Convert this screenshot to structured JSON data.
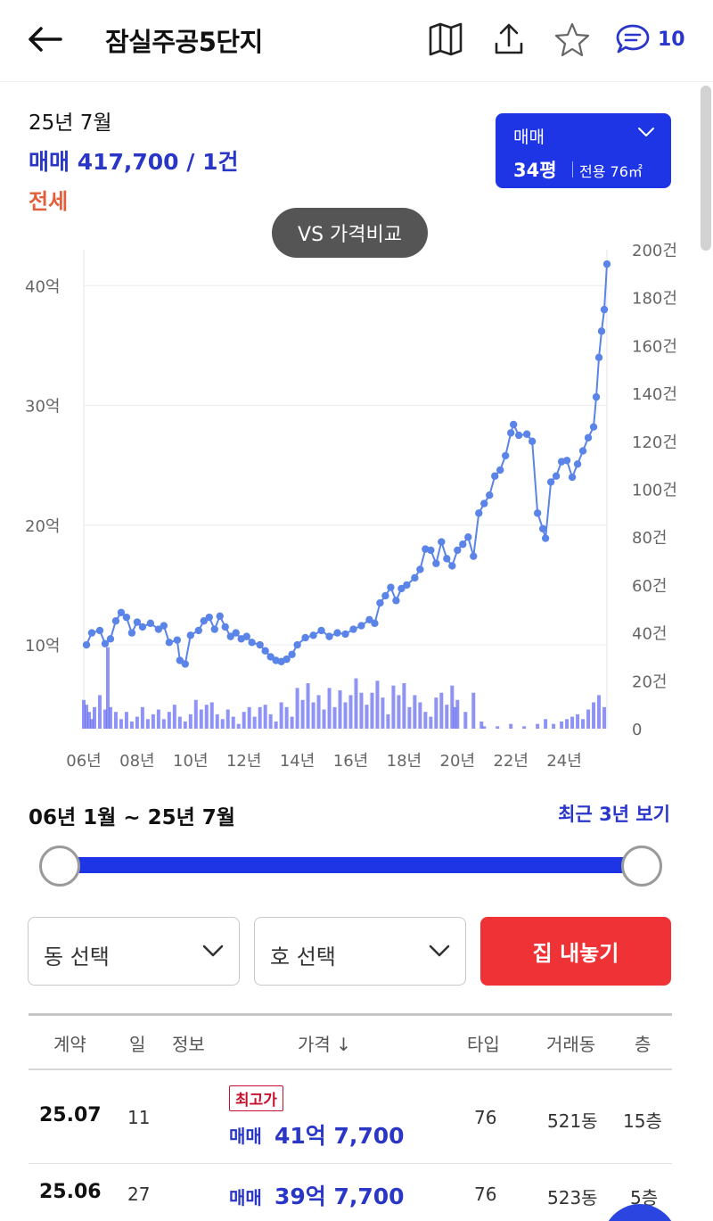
{
  "header": {
    "title": "잠실주공5단지",
    "comment_count": "10",
    "icons": [
      "back-arrow-icon",
      "map-icon",
      "share-icon",
      "star-icon",
      "comment-icon"
    ]
  },
  "summary": {
    "period": "25년 7월",
    "sale": "매매 417,700 / 1건",
    "jeonse": "전세"
  },
  "type_selector": {
    "deal": "매매",
    "size": "34평",
    "area": "전용 76㎡"
  },
  "vs_button": "VS 가격비교",
  "colors": {
    "accent": "#1e35e6",
    "price_text": "#2936c6",
    "jeonse": "#e35f3b",
    "cta": "#ef3236",
    "badge": "#c8102e",
    "line": "#5b84e8",
    "bars": "#6a70f0"
  },
  "chart_data": {
    "type": "line",
    "y_left_ticks": [
      "10억",
      "20억",
      "30억",
      "40억"
    ],
    "y_left_values": [
      10,
      20,
      30,
      40
    ],
    "y_left_range": [
      3,
      43
    ],
    "y_right_ticks": [
      "0",
      "20건",
      "40건",
      "60건",
      "80건",
      "100건",
      "120건",
      "140건",
      "160건",
      "180건",
      "200건"
    ],
    "y_right_range": [
      0,
      200
    ],
    "x_ticks": [
      "06년",
      "08년",
      "10년",
      "12년",
      "14년",
      "16년",
      "18년",
      "20년",
      "22년",
      "24년"
    ],
    "x_tick_years": [
      2006,
      2008,
      2010,
      2012,
      2014,
      2016,
      2018,
      2020,
      2022,
      2024
    ],
    "x_range": [
      2006,
      2025.6
    ],
    "grid": true,
    "series": [
      {
        "values": [
          [
            2006.1,
            10.0
          ],
          [
            2006.3,
            11.0
          ],
          [
            2006.6,
            11.2
          ],
          [
            2006.8,
            10.1
          ],
          [
            2007.0,
            10.5
          ],
          [
            2007.2,
            12.0
          ],
          [
            2007.4,
            12.7
          ],
          [
            2007.6,
            12.3
          ],
          [
            2007.8,
            11.0
          ],
          [
            2008.0,
            11.9
          ],
          [
            2008.2,
            11.5
          ],
          [
            2008.5,
            11.8
          ],
          [
            2008.8,
            11.3
          ],
          [
            2009.0,
            11.6
          ],
          [
            2009.2,
            10.2
          ],
          [
            2009.5,
            10.4
          ],
          [
            2009.6,
            8.7
          ],
          [
            2009.8,
            8.4
          ],
          [
            2010.0,
            10.8
          ],
          [
            2010.3,
            11.2
          ],
          [
            2010.5,
            12.0
          ],
          [
            2010.7,
            12.3
          ],
          [
            2010.9,
            11.3
          ],
          [
            2011.1,
            12.4
          ],
          [
            2011.3,
            11.5
          ],
          [
            2011.5,
            10.7
          ],
          [
            2011.7,
            11.0
          ],
          [
            2011.9,
            10.5
          ],
          [
            2012.1,
            10.7
          ],
          [
            2012.3,
            10.2
          ],
          [
            2012.6,
            10.0
          ],
          [
            2012.8,
            9.5
          ],
          [
            2013.0,
            9.0
          ],
          [
            2013.2,
            8.7
          ],
          [
            2013.4,
            8.6
          ],
          [
            2013.6,
            8.8
          ],
          [
            2013.8,
            9.2
          ],
          [
            2014.0,
            10.0
          ],
          [
            2014.3,
            10.6
          ],
          [
            2014.6,
            10.8
          ],
          [
            2014.9,
            11.2
          ],
          [
            2015.2,
            10.7
          ],
          [
            2015.5,
            11.0
          ],
          [
            2015.8,
            10.9
          ],
          [
            2016.1,
            11.3
          ],
          [
            2016.4,
            11.6
          ],
          [
            2016.7,
            12.1
          ],
          [
            2016.9,
            11.8
          ],
          [
            2017.1,
            13.5
          ],
          [
            2017.3,
            14.1
          ],
          [
            2017.5,
            14.8
          ],
          [
            2017.7,
            13.7
          ],
          [
            2017.9,
            14.7
          ],
          [
            2018.1,
            15.0
          ],
          [
            2018.4,
            15.6
          ],
          [
            2018.6,
            16.3
          ],
          [
            2018.8,
            18.0
          ],
          [
            2019.0,
            17.9
          ],
          [
            2019.2,
            16.8
          ],
          [
            2019.4,
            18.6
          ],
          [
            2019.6,
            17.2
          ],
          [
            2019.8,
            16.6
          ],
          [
            2020.0,
            17.9
          ],
          [
            2020.2,
            18.4
          ],
          [
            2020.4,
            19.0
          ],
          [
            2020.6,
            17.4
          ],
          [
            2020.8,
            21.0
          ],
          [
            2021.0,
            21.8
          ],
          [
            2021.2,
            22.5
          ],
          [
            2021.4,
            24.1
          ],
          [
            2021.6,
            24.6
          ],
          [
            2021.8,
            25.8
          ],
          [
            2022.0,
            27.7
          ],
          [
            2022.1,
            28.4
          ],
          [
            2022.3,
            27.5
          ],
          [
            2022.6,
            27.6
          ],
          [
            2022.8,
            27.0
          ],
          [
            2023.0,
            21.0
          ],
          [
            2023.2,
            19.7
          ],
          [
            2023.3,
            18.9
          ],
          [
            2023.5,
            23.6
          ],
          [
            2023.7,
            24.1
          ],
          [
            2023.9,
            25.3
          ],
          [
            2024.1,
            25.4
          ],
          [
            2024.3,
            24.0
          ],
          [
            2024.5,
            25.1
          ],
          [
            2024.7,
            26.2
          ],
          [
            2024.9,
            27.3
          ],
          [
            2025.1,
            28.2
          ],
          [
            2025.2,
            30.7
          ],
          [
            2025.3,
            34.0
          ],
          [
            2025.4,
            36.2
          ],
          [
            2025.5,
            38.0
          ],
          [
            2025.6,
            41.8
          ]
        ]
      },
      {
        "values": [
          [
            2006.0,
            12
          ],
          [
            2006.1,
            10
          ],
          [
            2006.2,
            7
          ],
          [
            2006.3,
            4
          ],
          [
            2006.4,
            9
          ],
          [
            2006.6,
            14
          ],
          [
            2006.8,
            8
          ],
          [
            2006.9,
            34
          ],
          [
            2007.0,
            9
          ],
          [
            2007.2,
            7
          ],
          [
            2007.4,
            4
          ],
          [
            2007.6,
            7
          ],
          [
            2007.8,
            3
          ],
          [
            2008.0,
            5
          ],
          [
            2008.2,
            9
          ],
          [
            2008.4,
            4
          ],
          [
            2008.6,
            6
          ],
          [
            2008.8,
            8
          ],
          [
            2009.0,
            4
          ],
          [
            2009.2,
            7
          ],
          [
            2009.4,
            10
          ],
          [
            2009.6,
            5
          ],
          [
            2009.8,
            3
          ],
          [
            2010.0,
            6
          ],
          [
            2010.2,
            12
          ],
          [
            2010.4,
            8
          ],
          [
            2010.6,
            10
          ],
          [
            2010.8,
            11
          ],
          [
            2011.0,
            6
          ],
          [
            2011.2,
            4
          ],
          [
            2011.4,
            8
          ],
          [
            2011.6,
            5
          ],
          [
            2011.8,
            2
          ],
          [
            2012.0,
            7
          ],
          [
            2012.2,
            9
          ],
          [
            2012.4,
            5
          ],
          [
            2012.6,
            9
          ],
          [
            2012.8,
            10
          ],
          [
            2013.0,
            6
          ],
          [
            2013.2,
            3
          ],
          [
            2013.4,
            11
          ],
          [
            2013.6,
            9
          ],
          [
            2013.8,
            5
          ],
          [
            2014.0,
            17
          ],
          [
            2014.2,
            12
          ],
          [
            2014.4,
            19
          ],
          [
            2014.6,
            11
          ],
          [
            2014.8,
            14
          ],
          [
            2015.0,
            8
          ],
          [
            2015.2,
            17
          ],
          [
            2015.4,
            9
          ],
          [
            2015.6,
            16
          ],
          [
            2015.8,
            11
          ],
          [
            2016.0,
            14
          ],
          [
            2016.2,
            21
          ],
          [
            2016.4,
            15
          ],
          [
            2016.6,
            10
          ],
          [
            2016.8,
            15
          ],
          [
            2017.0,
            20
          ],
          [
            2017.2,
            13
          ],
          [
            2017.4,
            6
          ],
          [
            2017.6,
            18
          ],
          [
            2017.8,
            14
          ],
          [
            2018.0,
            19
          ],
          [
            2018.2,
            9
          ],
          [
            2018.4,
            14
          ],
          [
            2018.6,
            11
          ],
          [
            2018.8,
            7
          ],
          [
            2019.0,
            5
          ],
          [
            2019.2,
            13
          ],
          [
            2019.4,
            15
          ],
          [
            2019.6,
            10
          ],
          [
            2019.8,
            18
          ],
          [
            2019.9,
            9
          ],
          [
            2020.0,
            12
          ],
          [
            2020.3,
            7
          ],
          [
            2020.6,
            15
          ],
          [
            2020.9,
            3
          ],
          [
            2021.0,
            1
          ],
          [
            2021.5,
            1
          ],
          [
            2022.0,
            2
          ],
          [
            2022.5,
            1
          ],
          [
            2023.0,
            2
          ],
          [
            2023.3,
            4
          ],
          [
            2023.6,
            2
          ],
          [
            2023.9,
            3
          ],
          [
            2024.1,
            4
          ],
          [
            2024.3,
            5
          ],
          [
            2024.5,
            6
          ],
          [
            2024.7,
            4
          ],
          [
            2024.9,
            8
          ],
          [
            2025.1,
            11
          ],
          [
            2025.3,
            14
          ],
          [
            2025.5,
            9
          ]
        ]
      }
    ]
  },
  "range": {
    "label": "06년 1월 ~ 25년 7월",
    "recent_link": "최근 3년 보기"
  },
  "filters": {
    "dong_placeholder": "동 선택",
    "ho_placeholder": "호 선택",
    "cta": "집 내놓기"
  },
  "table": {
    "headers": {
      "contract": "계약",
      "day": "일",
      "info": "정보",
      "price": "가격 ↓",
      "type": "타입",
      "dong": "거래동",
      "floor": "층"
    },
    "rows": [
      {
        "date": "25.07",
        "day": "11",
        "badge": "최고가",
        "deal": "매매",
        "price": "41억 7,700",
        "type": "76",
        "dong": "521동",
        "floor": "15층"
      },
      {
        "date": "25.06",
        "day": "27",
        "badge": "",
        "deal": "매매",
        "price": "39억 7,700",
        "type": "76",
        "dong": "523동",
        "floor": "5층"
      }
    ]
  }
}
